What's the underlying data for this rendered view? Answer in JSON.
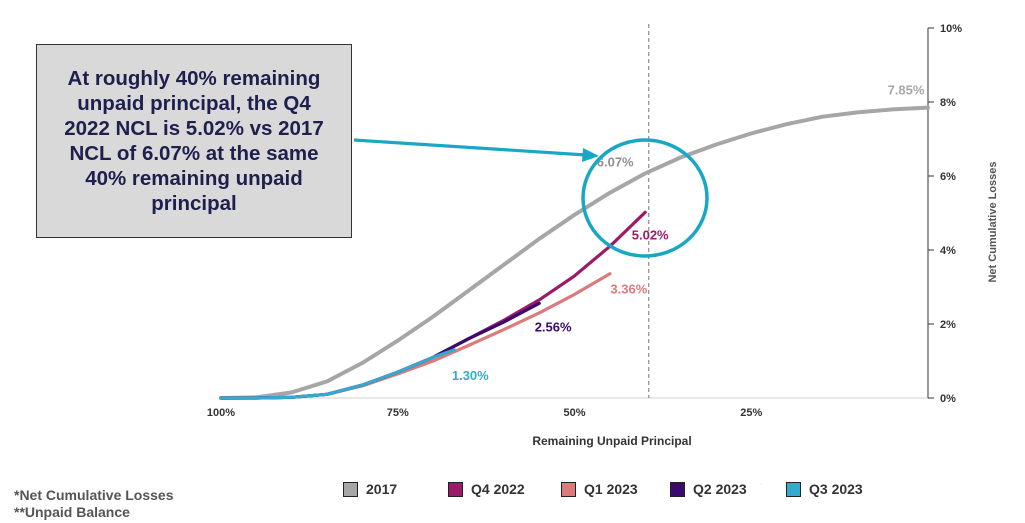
{
  "chart_data": {
    "type": "line",
    "xlabel": "Remaining Unpaid Principal",
    "ylabel": "Net Cumulative Losses",
    "x_axis_reversed": true,
    "xlim": [
      100,
      0
    ],
    "ylim": [
      0,
      10
    ],
    "x_ticks": [
      {
        "value": 100,
        "label": "100%"
      },
      {
        "value": 75,
        "label": "75%"
      },
      {
        "value": 50,
        "label": "50%"
      },
      {
        "value": 25,
        "label": "25%"
      }
    ],
    "y_ticks": [
      {
        "value": 0,
        "label": "0%"
      },
      {
        "value": 2,
        "label": "2%"
      },
      {
        "value": 4,
        "label": "4%"
      },
      {
        "value": 6,
        "label": "6%"
      },
      {
        "value": 8,
        "label": "8%"
      },
      {
        "value": 10,
        "label": "10%"
      }
    ],
    "reference_line_x": 39.5,
    "series": [
      {
        "name": "2017",
        "color": "#a6a6a6",
        "x": [
          100,
          95,
          90,
          85,
          80,
          75,
          70,
          65,
          60,
          55,
          50,
          45,
          40,
          35,
          30,
          25,
          20,
          15,
          10,
          5,
          0
        ],
        "y": [
          0,
          0.02,
          0.15,
          0.45,
          0.95,
          1.55,
          2.2,
          2.9,
          3.6,
          4.3,
          4.95,
          5.55,
          6.07,
          6.5,
          6.85,
          7.15,
          7.4,
          7.6,
          7.72,
          7.8,
          7.85
        ],
        "end_label": "7.85%"
      },
      {
        "name": "Q4 2022",
        "color": "#9b1b68",
        "x": [
          100,
          95,
          90,
          85,
          80,
          75,
          70,
          65,
          60,
          55,
          50,
          45,
          40
        ],
        "y": [
          0,
          0,
          0.02,
          0.1,
          0.35,
          0.7,
          1.1,
          1.6,
          2.1,
          2.65,
          3.3,
          4.1,
          5.02
        ],
        "end_label": "5.02%"
      },
      {
        "name": "Q1 2023",
        "color": "#db7b7b",
        "x": [
          100,
          95,
          90,
          85,
          80,
          75,
          70,
          65,
          60,
          55,
          50,
          45
        ],
        "y": [
          0,
          0,
          0.02,
          0.1,
          0.33,
          0.65,
          1.0,
          1.42,
          1.85,
          2.3,
          2.8,
          3.36
        ],
        "end_label": "3.36%"
      },
      {
        "name": "Q2 2023",
        "color": "#3b0a6e",
        "x": [
          100,
          95,
          90,
          85,
          80,
          75,
          70,
          65,
          60,
          55
        ],
        "y": [
          0,
          0,
          0.02,
          0.1,
          0.35,
          0.7,
          1.1,
          1.6,
          2.05,
          2.56
        ],
        "end_label": "2.56%"
      },
      {
        "name": "Q3 2023",
        "color": "#36a9cf",
        "x": [
          100,
          95,
          90,
          85,
          80,
          75,
          70,
          67
        ],
        "y": [
          0,
          0,
          0.02,
          0.1,
          0.35,
          0.7,
          1.1,
          1.3
        ],
        "end_label": "1.30%"
      }
    ],
    "annotations": [
      {
        "text": "6.07%",
        "x": 40,
        "y": 6.07
      }
    ]
  },
  "callout": {
    "text": "At roughly 40% remaining unpaid principal, the Q4 2022 NCL is 5.02% vs 2017 NCL of 6.07% at the same 40% remaining unpaid principal",
    "border_color": "#1aa7c4"
  },
  "footnotes": {
    "line1": "*Net Cumulative Losses",
    "line2": "**Unpaid Balance"
  },
  "legend": [
    {
      "label": "2017",
      "color": "#a6a6a6"
    },
    {
      "label": "Q4 2022",
      "color": "#9b1b68"
    },
    {
      "label": "Q1 2023",
      "color": "#db7b7b"
    },
    {
      "label": "Q2 2023",
      "color": "#3b0a6e"
    },
    {
      "label": "Q3 2023",
      "color": "#36a9cf"
    }
  ]
}
